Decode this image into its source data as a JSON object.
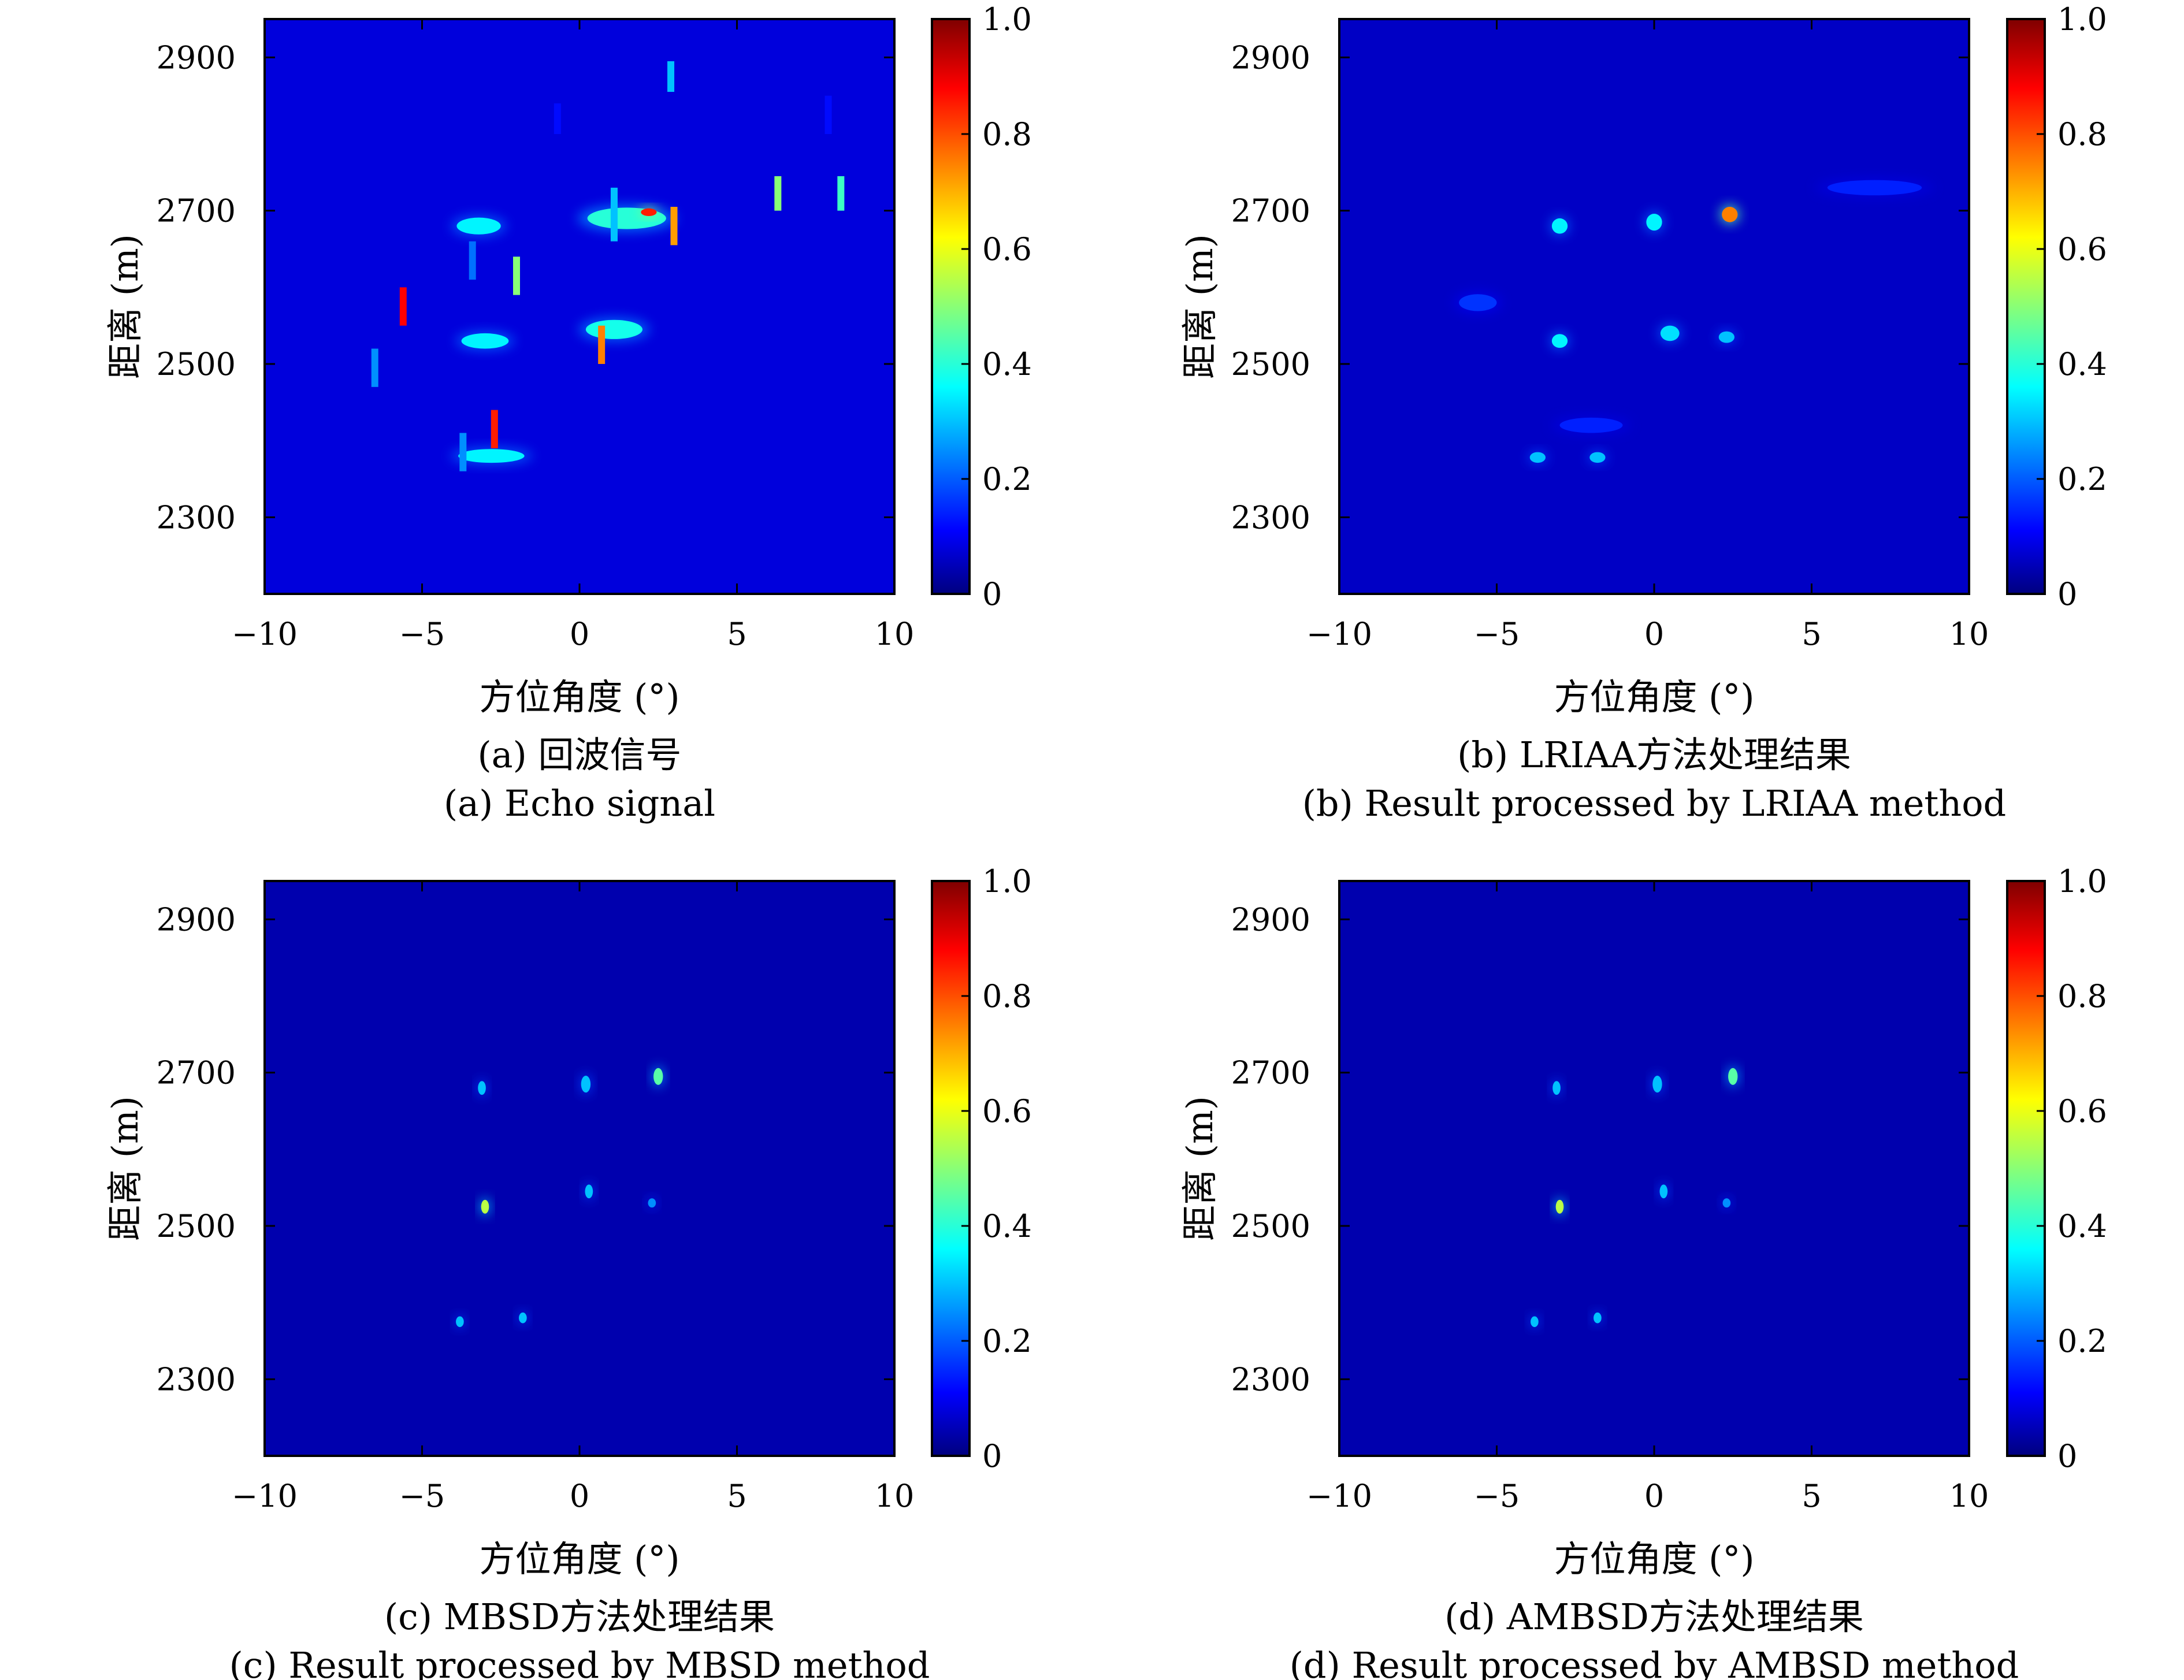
{
  "colormap": {
    "name": "jet",
    "stops": [
      "#00007f",
      "#0000ff",
      "#00ffff",
      "#ffff00",
      "#ff0000",
      "#7f0000"
    ],
    "background": "#001e96"
  },
  "chart_data": [
    {
      "type": "heatmap",
      "panel": "a",
      "caption_cn": "(a) 回波信号",
      "caption_en": "(a) Echo signal",
      "xlabel": "方位角度 (°)",
      "ylabel": "距离 (m)",
      "xlim": [
        -10,
        10
      ],
      "ylim": [
        2200,
        2950
      ],
      "xticks": [
        -10,
        -5,
        0,
        5,
        10
      ],
      "xtick_labels": [
        "−10",
        "−5",
        "0",
        "5",
        "10"
      ],
      "yticks": [
        2300,
        2500,
        2700,
        2900
      ],
      "ytick_labels": [
        "2300",
        "2500",
        "2700",
        "2900"
      ],
      "colorbar": {
        "range": [
          0,
          1
        ],
        "ticks": [
          0,
          0.2,
          0.4,
          0.6,
          0.8,
          1.0
        ],
        "tick_labels": [
          "0",
          "0.2",
          "0.4",
          "0.6",
          "0.8",
          "1.0"
        ]
      },
      "background_level": 0.08,
      "blobs": [
        {
          "x": -3.2,
          "y": 2680,
          "w": 1.4,
          "h": 22,
          "v": 0.35
        },
        {
          "x": 1.5,
          "y": 2690,
          "w": 2.5,
          "h": 28,
          "v": 0.4
        },
        {
          "x": 2.2,
          "y": 2698,
          "w": 0.5,
          "h": 10,
          "v": 0.85
        },
        {
          "x": -3.0,
          "y": 2530,
          "w": 1.5,
          "h": 20,
          "v": 0.35
        },
        {
          "x": 1.1,
          "y": 2545,
          "w": 1.8,
          "h": 25,
          "v": 0.38
        },
        {
          "x": -2.8,
          "y": 2380,
          "w": 2.1,
          "h": 18,
          "v": 0.35
        }
      ],
      "bars": [
        {
          "x": 2.9,
          "y0": 2855,
          "y1": 2895,
          "v": 0.3
        },
        {
          "x": -0.7,
          "y0": 2800,
          "y1": 2840,
          "v": 0.12
        },
        {
          "x": 7.9,
          "y0": 2800,
          "y1": 2850,
          "v": 0.12
        },
        {
          "x": 6.3,
          "y0": 2700,
          "y1": 2745,
          "v": 0.5
        },
        {
          "x": 8.3,
          "y0": 2700,
          "y1": 2745,
          "v": 0.42
        },
        {
          "x": 1.1,
          "y0": 2660,
          "y1": 2730,
          "v": 0.3
        },
        {
          "x": 3.0,
          "y0": 2655,
          "y1": 2705,
          "v": 0.72
        },
        {
          "x": -3.4,
          "y0": 2610,
          "y1": 2660,
          "v": 0.22
        },
        {
          "x": -2.0,
          "y0": 2590,
          "y1": 2640,
          "v": 0.5
        },
        {
          "x": -5.6,
          "y0": 2550,
          "y1": 2600,
          "v": 0.88
        },
        {
          "x": 0.7,
          "y0": 2500,
          "y1": 2550,
          "v": 0.75
        },
        {
          "x": -6.5,
          "y0": 2470,
          "y1": 2520,
          "v": 0.25
        },
        {
          "x": -2.7,
          "y0": 2390,
          "y1": 2440,
          "v": 0.85
        },
        {
          "x": -3.7,
          "y0": 2360,
          "y1": 2410,
          "v": 0.25
        }
      ]
    },
    {
      "type": "heatmap",
      "panel": "b",
      "caption_cn": "(b) LRIAA方法处理结果",
      "caption_en": "(b) Result processed by LRIAA method",
      "xlabel": "方位角度 (°)",
      "ylabel": "距离 (m)",
      "xlim": [
        -10,
        10
      ],
      "ylim": [
        2200,
        2950
      ],
      "xticks": [
        -10,
        -5,
        0,
        5,
        10
      ],
      "xtick_labels": [
        "−10",
        "−5",
        "0",
        "5",
        "10"
      ],
      "yticks": [
        2300,
        2500,
        2700,
        2900
      ],
      "ytick_labels": [
        "2300",
        "2500",
        "2700",
        "2900"
      ],
      "colorbar": {
        "range": [
          0,
          1
        ],
        "ticks": [
          0,
          0.2,
          0.4,
          0.6,
          0.8,
          1.0
        ],
        "tick_labels": [
          "0",
          "0.2",
          "0.4",
          "0.6",
          "0.8",
          "1.0"
        ]
      },
      "background_level": 0.06,
      "blobs": [
        {
          "x": -3.0,
          "y": 2680,
          "w": 0.5,
          "h": 20,
          "v": 0.35
        },
        {
          "x": 0.0,
          "y": 2685,
          "w": 0.5,
          "h": 22,
          "v": 0.35
        },
        {
          "x": 2.4,
          "y": 2695,
          "w": 0.5,
          "h": 20,
          "v": 0.75
        },
        {
          "x": -3.0,
          "y": 2530,
          "w": 0.5,
          "h": 18,
          "v": 0.35
        },
        {
          "x": 0.5,
          "y": 2540,
          "w": 0.6,
          "h": 20,
          "v": 0.33
        },
        {
          "x": 2.3,
          "y": 2535,
          "w": 0.5,
          "h": 15,
          "v": 0.3
        },
        {
          "x": -3.7,
          "y": 2378,
          "w": 0.5,
          "h": 14,
          "v": 0.3
        },
        {
          "x": -1.8,
          "y": 2378,
          "w": 0.5,
          "h": 14,
          "v": 0.3
        },
        {
          "x": -5.6,
          "y": 2580,
          "w": 1.2,
          "h": 22,
          "v": 0.16
        },
        {
          "x": 7.0,
          "y": 2730,
          "w": 3.0,
          "h": 20,
          "v": 0.14
        },
        {
          "x": -2.0,
          "y": 2420,
          "w": 2.0,
          "h": 20,
          "v": 0.14
        }
      ],
      "bars": []
    },
    {
      "type": "heatmap",
      "panel": "c",
      "caption_cn": "(c) MBSD方法处理结果",
      "caption_en": "(c) Result processed by MBSD method",
      "xlabel": "方位角度 (°)",
      "ylabel": "距离 (m)",
      "xlim": [
        -10,
        10
      ],
      "ylim": [
        2200,
        2950
      ],
      "xticks": [
        -10,
        -5,
        0,
        5,
        10
      ],
      "xtick_labels": [
        "−10",
        "−5",
        "0",
        "5",
        "10"
      ],
      "yticks": [
        2300,
        2500,
        2700,
        2900
      ],
      "ytick_labels": [
        "2300",
        "2500",
        "2700",
        "2900"
      ],
      "colorbar": {
        "range": [
          0,
          1
        ],
        "ticks": [
          0,
          0.2,
          0.4,
          0.6,
          0.8,
          1.0
        ],
        "tick_labels": [
          "0",
          "0.2",
          "0.4",
          "0.6",
          "0.8",
          "1.0"
        ]
      },
      "background_level": 0.04,
      "blobs": [
        {
          "x": -3.1,
          "y": 2680,
          "w": 0.25,
          "h": 18,
          "v": 0.3
        },
        {
          "x": 0.2,
          "y": 2685,
          "w": 0.3,
          "h": 22,
          "v": 0.3
        },
        {
          "x": 2.5,
          "y": 2695,
          "w": 0.3,
          "h": 22,
          "v": 0.45
        },
        {
          "x": -3.0,
          "y": 2525,
          "w": 0.25,
          "h": 18,
          "v": 0.55
        },
        {
          "x": 0.3,
          "y": 2545,
          "w": 0.25,
          "h": 18,
          "v": 0.3
        },
        {
          "x": 2.3,
          "y": 2530,
          "w": 0.25,
          "h": 12,
          "v": 0.25
        },
        {
          "x": -3.8,
          "y": 2375,
          "w": 0.25,
          "h": 14,
          "v": 0.3
        },
        {
          "x": -1.8,
          "y": 2380,
          "w": 0.25,
          "h": 14,
          "v": 0.3
        }
      ],
      "bars": []
    },
    {
      "type": "heatmap",
      "panel": "d",
      "caption_cn": "(d) AMBSD方法处理结果",
      "caption_en": "(d) Result processed by AMBSD method",
      "xlabel": "方位角度 (°)",
      "ylabel": "距离 (m)",
      "xlim": [
        -10,
        10
      ],
      "ylim": [
        2200,
        2950
      ],
      "xticks": [
        -10,
        -5,
        0,
        5,
        10
      ],
      "xtick_labels": [
        "−10",
        "−5",
        "0",
        "5",
        "10"
      ],
      "yticks": [
        2300,
        2500,
        2700,
        2900
      ],
      "ytick_labels": [
        "2300",
        "2500",
        "2700",
        "2900"
      ],
      "colorbar": {
        "range": [
          0,
          1
        ],
        "ticks": [
          0,
          0.2,
          0.4,
          0.6,
          0.8,
          1.0
        ],
        "tick_labels": [
          "0",
          "0.2",
          "0.4",
          "0.6",
          "0.8",
          "1.0"
        ]
      },
      "background_level": 0.04,
      "blobs": [
        {
          "x": -3.1,
          "y": 2680,
          "w": 0.25,
          "h": 18,
          "v": 0.3
        },
        {
          "x": 0.1,
          "y": 2685,
          "w": 0.3,
          "h": 22,
          "v": 0.3
        },
        {
          "x": 2.5,
          "y": 2695,
          "w": 0.3,
          "h": 22,
          "v": 0.45
        },
        {
          "x": -3.0,
          "y": 2525,
          "w": 0.25,
          "h": 18,
          "v": 0.55
        },
        {
          "x": 0.3,
          "y": 2545,
          "w": 0.25,
          "h": 18,
          "v": 0.3
        },
        {
          "x": 2.3,
          "y": 2530,
          "w": 0.25,
          "h": 12,
          "v": 0.25
        },
        {
          "x": -3.8,
          "y": 2375,
          "w": 0.25,
          "h": 14,
          "v": 0.3
        },
        {
          "x": -1.8,
          "y": 2380,
          "w": 0.25,
          "h": 14,
          "v": 0.3
        }
      ],
      "bars": []
    }
  ]
}
